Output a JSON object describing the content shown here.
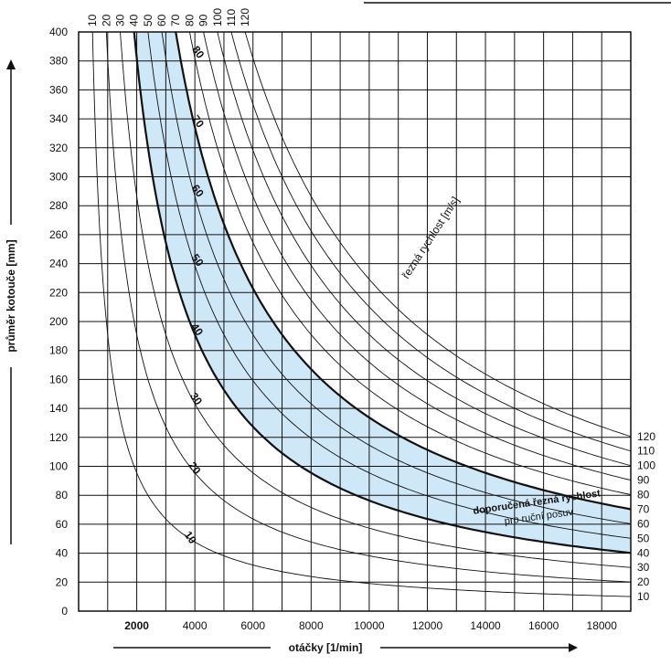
{
  "chart_data": {
    "type": "line",
    "formula_note": "",
    "x_axis": {
      "label": "otáčky [1/min]",
      "range": [
        0,
        19000
      ],
      "ticks": [
        2000,
        4000,
        6000,
        8000,
        10000,
        12000,
        14000,
        16000,
        18000
      ],
      "tick_labels": [
        "2000",
        "4000",
        "6000",
        "8000",
        "10000",
        "12000",
        "14000",
        "16000",
        "18000"
      ],
      "gridlines": [
        1000,
        2000,
        3000,
        4000,
        5000,
        6000,
        7000,
        8000,
        9000,
        10000,
        11000,
        12000,
        13000,
        14000,
        15000,
        16000,
        17000,
        18000,
        19000
      ]
    },
    "y_axis": {
      "label": "průměr kotouče [mm]",
      "range": [
        0,
        400
      ],
      "ticks": [
        0,
        20,
        40,
        60,
        80,
        100,
        120,
        140,
        160,
        180,
        200,
        220,
        240,
        260,
        280,
        300,
        320,
        340,
        360,
        380,
        400
      ],
      "tick_labels": [
        "0",
        "20",
        "40",
        "60",
        "80",
        "100",
        "120",
        "140",
        "160",
        "180",
        "200",
        "220",
        "240",
        "260",
        "280",
        "300",
        "320",
        "340",
        "360",
        "380",
        "400"
      ]
    },
    "series_label": "řezná rychlost [m/s]",
    "series": [
      {
        "name": "10",
        "speed": 10,
        "label": "10",
        "right_label": "10",
        "top_label": "10"
      },
      {
        "name": "20",
        "speed": 20,
        "label": "20",
        "right_label": "20",
        "top_label": "20"
      },
      {
        "name": "30",
        "speed": 30,
        "label": "30",
        "right_label": "30",
        "top_label": "30"
      },
      {
        "name": "40",
        "speed": 40,
        "label": "40",
        "right_label": "40",
        "top_label": "40",
        "bold": true
      },
      {
        "name": "50",
        "speed": 50,
        "label": "50",
        "right_label": "50",
        "top_label": "50"
      },
      {
        "name": "60",
        "speed": 60,
        "label": "60",
        "right_label": "60",
        "top_label": "60"
      },
      {
        "name": "70",
        "speed": 70,
        "label": "70",
        "right_label": "70",
        "top_label": "70",
        "bold": true
      },
      {
        "name": "80",
        "speed": 80,
        "label": "80",
        "right_label": "80",
        "top_label": "80"
      },
      {
        "name": "90",
        "speed": 90,
        "label": "90",
        "right_label": "90",
        "top_label": "90"
      },
      {
        "name": "100",
        "speed": 100,
        "label": "100",
        "right_label": "100",
        "top_label": "100"
      },
      {
        "name": "110",
        "speed": 110,
        "label": "110",
        "right_label": "110",
        "top_label": "110"
      },
      {
        "name": "120",
        "speed": 120,
        "label": "120",
        "right_label": "120",
        "top_label": "120"
      }
    ],
    "recommended_zone": {
      "from_speed": 40,
      "to_speed": 70,
      "title": "doporučená řezná rychlost",
      "subtitle": "pro ruční posuv",
      "fill": "#cfe8f7"
    },
    "grid": true
  },
  "colors": {
    "zone_fill": "#cfe8f7",
    "line": "#111111",
    "grid": "#111111"
  }
}
